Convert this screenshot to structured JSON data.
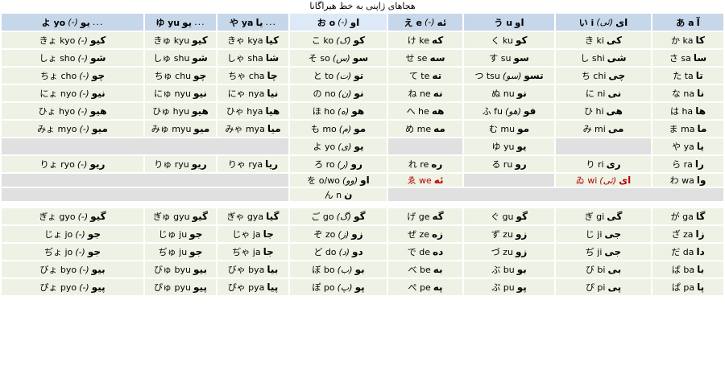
{
  "title": "هجاهای ژاپنی به خط هیراگانا",
  "colors": {
    "header_bg": "#c7d7ea",
    "header_highlight_bg": "#dde9f7",
    "cell_bg": "#edf2e4",
    "empty_bg": "#e0e0e0",
    "red_text": "#bb0000",
    "text": "#000000",
    "page_bg": "#ffffff"
  },
  "header": [
    {
      "key": "yo",
      "jp": "よ yo",
      "note": "-",
      "fa": "یو",
      "dots": "..."
    },
    {
      "key": "yu",
      "jp": "ゆ yu",
      "fa": "یو",
      "dots": "..."
    },
    {
      "key": "ya",
      "jp": "や ya",
      "fa": "یا",
      "dots": "..."
    },
    {
      "key": "o",
      "jp": "お o",
      "note": "-",
      "fa": "او",
      "hl": true
    },
    {
      "key": "e",
      "jp": "え e",
      "note": "-",
      "fa": "ئه"
    },
    {
      "key": "u",
      "jp": "う u",
      "fa": "او"
    },
    {
      "key": "i",
      "jp": "い i",
      "note": "ئی",
      "fa": "ای"
    },
    {
      "key": "a",
      "jp": "あ a",
      "fa": "آ"
    }
  ],
  "main_rows": [
    [
      {
        "jp": "きょ kyo",
        "note": "-",
        "fa": "کیو"
      },
      {
        "jp": "きゅ kyu",
        "fa": "کیو"
      },
      {
        "jp": "きゃ kya",
        "fa": "کیا"
      },
      {
        "jp": "こ ko",
        "note": "ک",
        "fa": "کو"
      },
      {
        "jp": "け ke",
        "fa": "که"
      },
      {
        "jp": "く ku",
        "fa": "کو"
      },
      {
        "jp": "き ki",
        "fa": "کی"
      },
      {
        "jp": "か ka",
        "fa": "کا"
      }
    ],
    [
      {
        "jp": "しょ sho",
        "note": "-",
        "fa": "شو"
      },
      {
        "jp": "しゅ shu",
        "fa": "شو"
      },
      {
        "jp": "しゃ sha",
        "fa": "شا"
      },
      {
        "jp": "そ so",
        "note": "س",
        "fa": "سو"
      },
      {
        "jp": "せ se",
        "fa": "سه"
      },
      {
        "jp": "す su",
        "fa": "سو"
      },
      {
        "jp": "し shi",
        "fa": "شی"
      },
      {
        "jp": "さ sa",
        "fa": "سا"
      }
    ],
    [
      {
        "jp": "ちょ cho",
        "note": "-",
        "fa": "چو"
      },
      {
        "jp": "ちゅ chu",
        "fa": "چو"
      },
      {
        "jp": "ちゃ cha",
        "fa": "چا"
      },
      {
        "jp": "と to",
        "note": "ت",
        "fa": "تو"
      },
      {
        "jp": "て te",
        "fa": "ته"
      },
      {
        "jp": "つ tsu",
        "note": "سو",
        "fa": "تسو"
      },
      {
        "jp": "ち chi",
        "fa": "چی"
      },
      {
        "jp": "た ta",
        "fa": "تا"
      }
    ],
    [
      {
        "jp": "にょ nyo",
        "note": "-",
        "fa": "نیو"
      },
      {
        "jp": "にゅ nyu",
        "fa": "نیو"
      },
      {
        "jp": "にゃ nya",
        "fa": "نیا"
      },
      {
        "jp": "の no",
        "note": "ن",
        "fa": "نو"
      },
      {
        "jp": "ね ne",
        "fa": "نه"
      },
      {
        "jp": "ぬ nu",
        "fa": "نو"
      },
      {
        "jp": "に ni",
        "fa": "نی"
      },
      {
        "jp": "な na",
        "fa": "نا"
      }
    ],
    [
      {
        "jp": "ひょ hyo",
        "note": "-",
        "fa": "هیو"
      },
      {
        "jp": "ひゅ hyu",
        "fa": "هیو"
      },
      {
        "jp": "ひゃ hya",
        "fa": "هیا"
      },
      {
        "jp": "ほ ho",
        "note": "ه",
        "fa": "هو"
      },
      {
        "jp": "へ he",
        "fa": "هه"
      },
      {
        "jp": "ふ fu",
        "note": "هو",
        "fa": "فو"
      },
      {
        "jp": "ひ hi",
        "fa": "هی"
      },
      {
        "jp": "は ha",
        "fa": "ها"
      }
    ],
    [
      {
        "jp": "みょ myo",
        "note": "-",
        "fa": "میو"
      },
      {
        "jp": "みゅ myu",
        "fa": "میو"
      },
      {
        "jp": "みゃ mya",
        "fa": "میا"
      },
      {
        "jp": "も mo",
        "note": "م",
        "fa": "مو"
      },
      {
        "jp": "め me",
        "fa": "مه"
      },
      {
        "jp": "む mu",
        "fa": "مو"
      },
      {
        "jp": "み mi",
        "fa": "می"
      },
      {
        "jp": "ま ma",
        "fa": "ما"
      }
    ],
    [
      {
        "gray": true,
        "span": 3
      },
      {
        "jp": "よ yo",
        "note": "ی",
        "fa": "یو"
      },
      {
        "gray": true,
        "span": 1
      },
      {
        "jp": "ゆ yu",
        "fa": "یو"
      },
      {
        "gray": true,
        "span": 1
      },
      {
        "jp": "や ya",
        "fa": "یا"
      }
    ],
    [
      {
        "jp": "りょ ryo",
        "note": "-",
        "fa": "ریو"
      },
      {
        "jp": "りゅ ryu",
        "fa": "ریو"
      },
      {
        "jp": "りゃ rya",
        "fa": "ریا"
      },
      {
        "jp": "ろ ro",
        "note": "ر",
        "fa": "رو"
      },
      {
        "jp": "れ re",
        "fa": "ره"
      },
      {
        "jp": "る ru",
        "fa": "رو"
      },
      {
        "jp": "り ri",
        "fa": "ری"
      },
      {
        "jp": "ら ra",
        "fa": "را"
      }
    ],
    [
      {
        "gray": true,
        "span": 3
      },
      {
        "jp": "を o/wo",
        "note": "وو",
        "fa": "او"
      },
      {
        "jp": "ゑ we",
        "fa": "ئه",
        "red": true
      },
      {
        "gray": true,
        "span": 1
      },
      {
        "jp": "ゐ wi",
        "note": "ئی",
        "fa": "ای",
        "red": true
      },
      {
        "jp": "わ wa",
        "fa": "وا"
      }
    ],
    [
      {
        "gray": true,
        "span": 3
      },
      {
        "jp": "ん n",
        "fa": "ن"
      },
      {
        "gray": true,
        "span": 4
      }
    ]
  ],
  "voiced_rows": [
    [
      {
        "jp": "ぎょ gyo",
        "note": "-",
        "fa": "گیو"
      },
      {
        "jp": "ぎゅ gyu",
        "fa": "گیو"
      },
      {
        "jp": "ぎゃ gya",
        "fa": "گیا"
      },
      {
        "jp": "ご go",
        "note": "گ",
        "fa": "گو"
      },
      {
        "jp": "げ ge",
        "fa": "گه"
      },
      {
        "jp": "ぐ gu",
        "fa": "گو"
      },
      {
        "jp": "ぎ gi",
        "fa": "گی"
      },
      {
        "jp": "が ga",
        "fa": "گا"
      }
    ],
    [
      {
        "jp": "じょ jo",
        "note": "-",
        "fa": "جو"
      },
      {
        "jp": "じゅ ju",
        "fa": "جو"
      },
      {
        "jp": "じゃ ja",
        "fa": "جا"
      },
      {
        "jp": "ぞ zo",
        "note": "ز",
        "fa": "زو"
      },
      {
        "jp": "ぜ ze",
        "fa": "زه"
      },
      {
        "jp": "ず zu",
        "fa": "زو"
      },
      {
        "jp": "じ ji",
        "fa": "جی"
      },
      {
        "jp": "ざ za",
        "fa": "زا"
      }
    ],
    [
      {
        "jp": "ぢょ jo",
        "note": "-",
        "fa": "جو"
      },
      {
        "jp": "ぢゅ ju",
        "fa": "جو"
      },
      {
        "jp": "ぢゃ ja",
        "fa": "جا"
      },
      {
        "jp": "ど do",
        "note": "د",
        "fa": "دو"
      },
      {
        "jp": "で de",
        "fa": "ده"
      },
      {
        "jp": "づ zu",
        "fa": "زو"
      },
      {
        "jp": "ぢ ji",
        "fa": "جی"
      },
      {
        "jp": "だ da",
        "fa": "دا"
      }
    ],
    [
      {
        "jp": "びょ byo",
        "note": "-",
        "fa": "بیو"
      },
      {
        "jp": "びゅ byu",
        "fa": "بیو"
      },
      {
        "jp": "びゃ bya",
        "fa": "بیا"
      },
      {
        "jp": "ぼ bo",
        "note": "ب",
        "fa": "بو"
      },
      {
        "jp": "べ be",
        "fa": "به"
      },
      {
        "jp": "ぶ bu",
        "fa": "بو"
      },
      {
        "jp": "び bi",
        "fa": "بی"
      },
      {
        "jp": "ば ba",
        "fa": "با"
      }
    ],
    [
      {
        "jp": "ぴょ pyo",
        "note": "-",
        "fa": "پیو"
      },
      {
        "jp": "ぴゅ pyu",
        "fa": "پیو"
      },
      {
        "jp": "ぴゃ pya",
        "fa": "پیا"
      },
      {
        "jp": "ぽ po",
        "note": "پ",
        "fa": "پو"
      },
      {
        "jp": "ぺ pe",
        "fa": "په"
      },
      {
        "jp": "ぷ pu",
        "fa": "پو"
      },
      {
        "jp": "ぴ pi",
        "fa": "پی"
      },
      {
        "jp": "ぱ pa",
        "fa": "پا"
      }
    ]
  ]
}
